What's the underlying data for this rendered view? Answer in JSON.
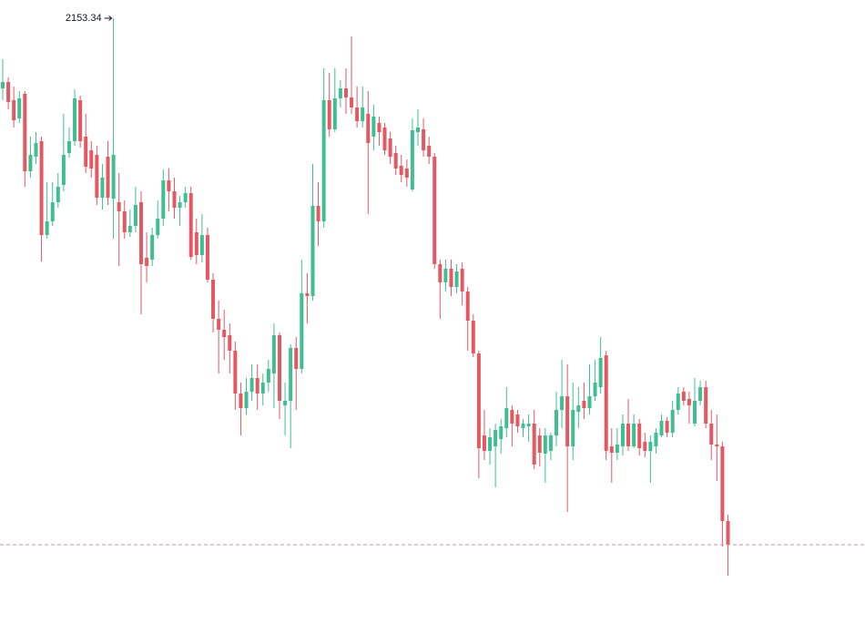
{
  "chart_data": {
    "type": "candlestick",
    "open": [
      2134.09,
      2135.84,
      2130.84,
      2125.84,
      2132.59,
      2111.34,
      2115.34,
      2119.59,
      2093.84,
      2097.59,
      2102.84,
      2107.59,
      2116.34,
      2119.59,
      2130.84,
      2120.84,
      2117.09,
      2115.84,
      2104.09,
      2115.34,
      2103.84,
      2102.84,
      2100.34,
      2094.59,
      2096.34,
      2102.84,
      2087.59,
      2087.09,
      2093.84,
      2098.34,
      2108.84,
      2105.84,
      2101.34,
      2102.84,
      2105.34,
      2094.59,
      2088.34,
      2093.84,
      2081.59,
      2070.84,
      2067.84,
      2066.34,
      2062.09,
      2050.34,
      2046.34,
      2050.84,
      2054.59,
      2050.34,
      2053.34,
      2055.84,
      2066.34,
      2047.09,
      2048.34,
      2062.84,
      2057.09,
      2077.84,
      2077.09,
      2101.84,
      2097.59,
      2130.84,
      2122.84,
      2131.34,
      2134.09,
      2131.59,
      2128.84,
      2125.09,
      2127.09,
      2120.84,
      2124.59,
      2123.34,
      2120.34,
      2116.34,
      2112.84,
      2112.09,
      2106.34,
      2122.09,
      2122.84,
      2118.34,
      2115.34,
      2085.84,
      2080.84,
      2084.59,
      2079.59,
      2084.59,
      2078.34,
      2070.34,
      2061.34,
      2038.84,
      2034.59,
      2035.84,
      2037.84,
      2040.84,
      2045.84,
      2044.59,
      2040.84,
      2041.34,
      2042.09,
      2038.84,
      2033.84,
      2034.59,
      2038.84,
      2045.84,
      2049.59,
      2035.84,
      2045.34,
      2048.34,
      2046.34,
      2049.59,
      2052.09,
      2060.84,
      2035.84,
      2034.09,
      2035.84,
      2042.09,
      2035.84,
      2042.09,
      2037.09,
      2034.59,
      2035.84,
      2038.84,
      2042.84,
      2039.59,
      2045.84,
      2050.84,
      2048.84,
      2042.09,
      2048.34,
      2052.09,
      2042.09,
      2036.34,
      2035.84,
      2015.34
    ],
    "high": [
      2142.09,
      2137.09,
      2134.59,
      2133.34,
      2133.34,
      2120.84,
      2122.09,
      2120.84,
      2108.34,
      2108.34,
      2110.84,
      2127.09,
      2123.34,
      2133.84,
      2132.09,
      2127.09,
      2119.59,
      2118.34,
      2113.34,
      2119.59,
      2153.34,
      2110.84,
      2103.34,
      2100.84,
      2107.09,
      2105.84,
      2094.59,
      2095.84,
      2103.34,
      2111.84,
      2112.09,
      2109.59,
      2104.59,
      2107.09,
      2107.09,
      2098.34,
      2099.59,
      2095.84,
      2083.34,
      2075.84,
      2073.34,
      2069.59,
      2064.59,
      2053.34,
      2054.59,
      2058.34,
      2058.34,
      2055.84,
      2059.59,
      2069.59,
      2067.09,
      2053.34,
      2063.84,
      2065.84,
      2087.09,
      2083.34,
      2113.34,
      2108.34,
      2139.59,
      2138.34,
      2139.59,
      2136.34,
      2139.59,
      2148.34,
      2134.59,
      2134.59,
      2133.34,
      2129.59,
      2126.34,
      2124.59,
      2122.09,
      2118.34,
      2115.84,
      2114.59,
      2125.84,
      2128.34,
      2125.84,
      2120.84,
      2116.34,
      2087.09,
      2087.09,
      2087.09,
      2085.84,
      2086.34,
      2079.59,
      2072.09,
      2062.09,
      2045.84,
      2040.84,
      2042.09,
      2043.34,
      2052.09,
      2047.09,
      2045.84,
      2043.34,
      2044.59,
      2045.84,
      2040.84,
      2040.84,
      2039.59,
      2050.84,
      2059.59,
      2058.34,
      2053.34,
      2052.09,
      2053.34,
      2058.34,
      2059.59,
      2065.84,
      2062.09,
      2040.84,
      2040.84,
      2044.59,
      2048.84,
      2044.59,
      2043.34,
      2039.59,
      2038.84,
      2040.84,
      2044.59,
      2043.84,
      2048.34,
      2052.09,
      2052.09,
      2050.84,
      2054.59,
      2053.84,
      2053.84,
      2045.84,
      2044.59,
      2037.09,
      2017.09
    ],
    "low": [
      2130.84,
      2128.34,
      2123.34,
      2124.59,
      2107.09,
      2109.59,
      2113.34,
      2086.59,
      2092.84,
      2096.34,
      2101.34,
      2105.84,
      2115.09,
      2118.34,
      2117.84,
      2110.84,
      2109.59,
      2102.09,
      2100.84,
      2102.09,
      2092.84,
      2085.34,
      2092.84,
      2093.34,
      2094.59,
      2072.09,
      2080.84,
      2085.34,
      2092.84,
      2096.34,
      2100.34,
      2098.34,
      2096.34,
      2101.34,
      2087.09,
      2085.84,
      2086.34,
      2080.84,
      2067.09,
      2055.84,
      2059.59,
      2055.84,
      2045.84,
      2038.84,
      2044.59,
      2048.34,
      2045.84,
      2047.09,
      2050.84,
      2046.34,
      2043.34,
      2038.84,
      2035.34,
      2045.84,
      2055.84,
      2069.59,
      2075.84,
      2090.84,
      2095.84,
      2120.84,
      2122.09,
      2128.84,
      2127.09,
      2127.09,
      2123.34,
      2123.34,
      2099.59,
      2117.09,
      2118.34,
      2115.84,
      2113.34,
      2110.34,
      2108.34,
      2107.09,
      2105.84,
      2118.34,
      2115.34,
      2113.34,
      2084.59,
      2070.84,
      2078.34,
      2077.09,
      2077.84,
      2074.59,
      2062.09,
      2060.34,
      2027.09,
      2032.09,
      2030.84,
      2024.59,
      2033.84,
      2038.34,
      2035.84,
      2039.59,
      2038.34,
      2037.09,
      2029.59,
      2030.34,
      2025.84,
      2032.09,
      2035.84,
      2040.84,
      2017.84,
      2032.09,
      2040.84,
      2043.34,
      2044.59,
      2048.34,
      2050.34,
      2032.09,
      2025.84,
      2032.09,
      2033.34,
      2034.59,
      2035.34,
      2033.34,
      2032.84,
      2025.84,
      2033.84,
      2038.34,
      2038.34,
      2038.34,
      2044.59,
      2047.09,
      2042.09,
      2041.34,
      2047.09,
      2040.84,
      2032.09,
      2026.34,
      2008.34,
      2000.34
    ],
    "close": [
      2135.84,
      2130.34,
      2125.34,
      2131.34,
      2111.34,
      2115.84,
      2119.09,
      2093.84,
      2097.59,
      2102.84,
      2107.09,
      2115.84,
      2119.59,
      2131.34,
      2119.59,
      2112.59,
      2112.09,
      2104.09,
      2109.59,
      2104.09,
      2115.84,
      2100.34,
      2094.59,
      2096.34,
      2102.09,
      2085.84,
      2085.34,
      2093.84,
      2098.34,
      2108.84,
      2105.84,
      2101.34,
      2102.84,
      2105.34,
      2087.84,
      2088.34,
      2093.84,
      2081.59,
      2070.84,
      2067.84,
      2065.84,
      2062.09,
      2050.34,
      2046.34,
      2050.84,
      2054.59,
      2050.34,
      2053.34,
      2057.09,
      2066.34,
      2048.34,
      2048.34,
      2062.84,
      2057.09,
      2077.84,
      2077.09,
      2101.84,
      2097.59,
      2130.84,
      2122.84,
      2131.34,
      2134.09,
      2131.59,
      2128.84,
      2125.09,
      2128.84,
      2119.09,
      2126.34,
      2122.09,
      2117.09,
      2115.34,
      2112.09,
      2110.34,
      2109.59,
      2122.59,
      2123.34,
      2117.09,
      2115.34,
      2085.84,
      2080.84,
      2084.59,
      2079.59,
      2083.84,
      2078.34,
      2070.34,
      2061.34,
      2035.34,
      2034.59,
      2038.34,
      2040.34,
      2041.34,
      2046.34,
      2042.09,
      2041.34,
      2042.09,
      2042.09,
      2030.84,
      2034.09,
      2038.84,
      2038.84,
      2045.84,
      2049.59,
      2035.84,
      2045.84,
      2047.09,
      2046.34,
      2049.59,
      2053.34,
      2060.09,
      2034.59,
      2034.09,
      2036.34,
      2042.09,
      2035.84,
      2042.09,
      2035.34,
      2034.59,
      2037.09,
      2039.59,
      2042.84,
      2039.59,
      2045.84,
      2050.34,
      2048.34,
      2047.09,
      2048.34,
      2052.09,
      2042.09,
      2036.34,
      2035.84,
      2015.34,
      2008.84
    ],
    "up_color": "#3fbf91",
    "down_color": "#e45863",
    "last_price_line_color": "#c9939b",
    "ylim": [
      1987.09,
      2158.34
    ],
    "high_annotation_index": 20
  }
}
